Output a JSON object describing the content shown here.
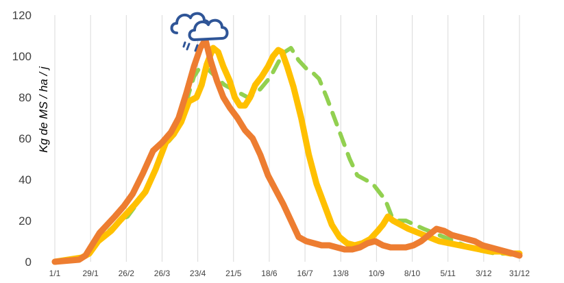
{
  "chart_data": {
    "type": "line",
    "title": "",
    "xlabel": "",
    "ylabel": "Kg de MS / ha / j",
    "ylim": [
      0,
      120
    ],
    "yticks": [
      0,
      20,
      40,
      60,
      80,
      100,
      120
    ],
    "xlim": [
      1,
      365
    ],
    "xtick_labels": [
      "1/1",
      "29/1",
      "26/2",
      "26/3",
      "23/4",
      "21/5",
      "18/6",
      "16/7",
      "13/8",
      "10/9",
      "8/10",
      "5/11",
      "3/12",
      "31/12"
    ],
    "xtick_days": [
      1,
      29,
      57,
      85,
      113,
      141,
      169,
      197,
      225,
      253,
      281,
      309,
      337,
      365
    ],
    "grid": "vertical",
    "legend": "none",
    "annotation_icon": "rain-cloud-icon",
    "series": [
      {
        "color": "#92D050",
        "style": "dashed",
        "x": [
          1,
          22,
          28,
          35,
          45,
          52,
          58,
          64,
          72,
          80,
          88,
          95,
          101,
          106,
          110,
          114,
          118,
          122,
          127,
          134,
          140,
          146,
          152,
          156,
          162,
          170,
          176,
          181,
          186,
          192,
          198,
          203,
          208,
          214,
          220,
          226,
          232,
          238,
          244,
          250,
          255,
          260,
          265,
          270,
          276,
          283,
          290,
          298,
          306,
          314,
          322,
          330,
          338,
          346,
          354,
          365
        ],
        "y": [
          0,
          2,
          5,
          10,
          16,
          20,
          22,
          27,
          35,
          45,
          57,
          62,
          70,
          82,
          90,
          94,
          95,
          93,
          90,
          86,
          84,
          82,
          80,
          81,
          84,
          90,
          97,
          102,
          104,
          98,
          94,
          92,
          89,
          80,
          70,
          60,
          50,
          42,
          40,
          38,
          34,
          30,
          22,
          20,
          20,
          18,
          16,
          14,
          12,
          10,
          8,
          6,
          5,
          4,
          4,
          4
        ]
      },
      {
        "color": "#FFC000",
        "style": "solid",
        "x": [
          1,
          22,
          28,
          35,
          45,
          52,
          58,
          64,
          72,
          80,
          88,
          94,
          100,
          106,
          112,
          116,
          120,
          125,
          129,
          133,
          138,
          142,
          146,
          150,
          154,
          158,
          163,
          168,
          172,
          176,
          179,
          183,
          188,
          194,
          200,
          206,
          212,
          218,
          224,
          230,
          236,
          242,
          248,
          254,
          258,
          262,
          266,
          272,
          278,
          286,
          294,
          302,
          310,
          318,
          326,
          334,
          342,
          350,
          358,
          365
        ],
        "y": [
          0,
          2,
          4,
          10,
          15,
          20,
          24,
          28,
          34,
          45,
          58,
          62,
          68,
          78,
          80,
          86,
          96,
          104,
          102,
          95,
          88,
          80,
          76,
          76,
          80,
          86,
          90,
          95,
          100,
          103,
          102,
          95,
          85,
          70,
          52,
          38,
          28,
          18,
          12,
          9,
          8,
          9,
          11,
          15,
          18,
          22,
          20,
          18,
          16,
          14,
          12,
          10,
          9,
          8,
          7,
          6,
          5,
          5,
          4,
          4
        ]
      },
      {
        "color": "#ED7D31",
        "style": "solid",
        "x": [
          1,
          20,
          25,
          30,
          36,
          42,
          48,
          55,
          62,
          70,
          78,
          85,
          92,
          98,
          104,
          110,
          115,
          119,
          123,
          128,
          133,
          138,
          144,
          150,
          156,
          162,
          168,
          174,
          180,
          186,
          192,
          198,
          204,
          210,
          216,
          222,
          228,
          234,
          240,
          246,
          252,
          258,
          264,
          270,
          276,
          282,
          288,
          294,
          300,
          306,
          312,
          318,
          324,
          330,
          336,
          342,
          348,
          354,
          360,
          365
        ],
        "y": [
          0,
          1,
          3,
          8,
          14,
          18,
          22,
          27,
          33,
          43,
          54,
          58,
          63,
          70,
          82,
          95,
          104,
          108,
          98,
          88,
          80,
          75,
          70,
          64,
          60,
          52,
          42,
          35,
          28,
          20,
          12,
          10,
          9,
          8,
          8,
          7,
          6,
          6,
          7,
          9,
          10,
          8,
          7,
          7,
          7,
          8,
          10,
          13,
          16,
          15,
          13,
          12,
          11,
          10,
          8,
          7,
          6,
          5,
          4,
          3
        ]
      }
    ]
  }
}
